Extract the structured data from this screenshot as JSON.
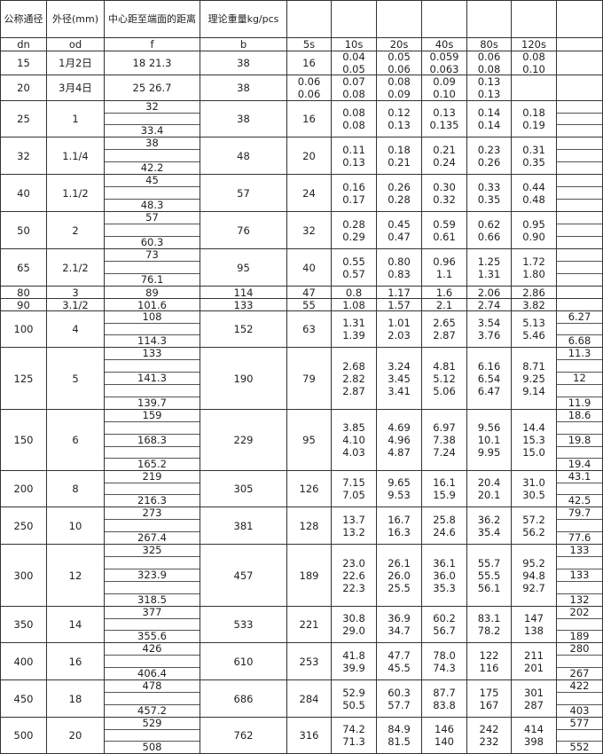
{
  "header": {
    "titles": [
      "公称通径",
      "外径(mm)",
      "中心距至端面的距离",
      "理论重量kg/pcs",
      "",
      "",
      "",
      "",
      "",
      "",
      ""
    ],
    "codes": [
      "dn",
      "od",
      "f",
      "b",
      "5s",
      "10s",
      "20s",
      "40s",
      "80s",
      "120s",
      ""
    ]
  },
  "rows": [
    {
      "dn": "15",
      "od": "1月2日",
      "f": [
        "18 21.3"
      ],
      "b": "38",
      "s5": [
        "16"
      ],
      "w": [
        [
          "0.04",
          "0.05"
        ],
        [
          "0.05",
          "0.06"
        ],
        [
          "0.059",
          "0.063"
        ],
        [
          "0.06",
          "0.08"
        ],
        [
          "0.08",
          "0.10"
        ]
      ],
      "extra": [
        ""
      ]
    },
    {
      "dn": "20",
      "od": "3月4日",
      "f": [
        "25 26.7"
      ],
      "b": "38",
      "s5": [
        "0.06",
        "0.06"
      ],
      "w": [
        [
          "0.07",
          "0.08"
        ],
        [
          "0.08",
          "0.09"
        ],
        [
          "0.09",
          "0.10"
        ],
        [
          "0.13",
          "0.13"
        ],
        []
      ],
      "extra": [
        ""
      ]
    },
    {
      "dn": "25",
      "od": "1",
      "f": [
        "32",
        "",
        "33.4"
      ],
      "b": "38",
      "s5": [
        "16"
      ],
      "w": [
        [
          "0.08",
          "0.08"
        ],
        [
          "0.12",
          "0.13"
        ],
        [
          "0.13",
          "0.135"
        ],
        [
          "0.14",
          "0.14"
        ],
        [
          "0.18",
          "0.19"
        ]
      ],
      "extra": [
        "",
        "",
        ""
      ]
    },
    {
      "dn": "32",
      "od": "1.1/4",
      "f": [
        "38",
        "",
        "42.2"
      ],
      "b": "48",
      "s5": [
        "20"
      ],
      "w": [
        [
          "0.11",
          "0.13"
        ],
        [
          "0.18",
          "0.21"
        ],
        [
          "0.21",
          "0.24"
        ],
        [
          "0.23",
          "0.26"
        ],
        [
          "0.31",
          "0.35"
        ]
      ],
      "extra": [
        "",
        "",
        ""
      ]
    },
    {
      "dn": "40",
      "od": "1.1/2",
      "f": [
        "45",
        "",
        "48.3"
      ],
      "b": "57",
      "s5": [
        "24"
      ],
      "w": [
        [
          "0.16",
          "0.17"
        ],
        [
          "0.26",
          "0.28"
        ],
        [
          "0.30",
          "0.32"
        ],
        [
          "0.33",
          "0.35"
        ],
        [
          "0.44",
          "0.48"
        ]
      ],
      "extra": [
        "",
        "",
        ""
      ]
    },
    {
      "dn": "50",
      "od": "2",
      "f": [
        "57",
        "",
        "60.3"
      ],
      "b": "76",
      "s5": [
        "32"
      ],
      "w": [
        [
          "0.28",
          "0.29"
        ],
        [
          "0.45",
          "0.47"
        ],
        [
          "0.59",
          "0.61"
        ],
        [
          "0.62",
          "0.66"
        ],
        [
          "0.95",
          "0.90"
        ]
      ],
      "extra": [
        "",
        "",
        ""
      ]
    },
    {
      "dn": "65",
      "od": "2.1/2",
      "f": [
        "73",
        "",
        "76.1"
      ],
      "b": "95",
      "s5": [
        "40"
      ],
      "w": [
        [
          "0.55",
          "0.57"
        ],
        [
          "0.80",
          "0.83"
        ],
        [
          "0.96",
          "1.1"
        ],
        [
          "1.25",
          "1.31"
        ],
        [
          "1.72",
          "1.80"
        ]
      ],
      "extra": [
        "",
        "",
        ""
      ]
    },
    {
      "dn": "80",
      "od": "3",
      "f": [
        "89"
      ],
      "b": "114",
      "s5": [
        "47"
      ],
      "w": [
        [
          "0.8"
        ],
        [
          "1.17"
        ],
        [
          "1.6"
        ],
        [
          "2.06"
        ],
        [
          "2.86"
        ]
      ],
      "extra": [
        ""
      ]
    },
    {
      "dn": "90",
      "od": "3.1/2",
      "f": [
        "101.6"
      ],
      "b": "133",
      "s5": [
        "55"
      ],
      "w": [
        [
          "1.08"
        ],
        [
          "1.57"
        ],
        [
          "2.1"
        ],
        [
          "2.74"
        ],
        [
          "3.82"
        ]
      ],
      "extra": [
        ""
      ]
    },
    {
      "dn": "100",
      "od": "4",
      "f": [
        "108",
        "",
        "114.3"
      ],
      "b": "152",
      "s5": [
        "63"
      ],
      "w": [
        [
          "1.31",
          "1.39"
        ],
        [
          "1.01",
          "2.03"
        ],
        [
          "2.65",
          "2.87"
        ],
        [
          "3.54",
          "3.76"
        ],
        [
          "5.13",
          "5.46"
        ]
      ],
      "extra": [
        "6.27",
        "",
        "6.68"
      ]
    },
    {
      "dn": "125",
      "od": "5",
      "f": [
        "133",
        "",
        "141.3",
        "",
        "139.7"
      ],
      "b": "190",
      "s5": [
        "79"
      ],
      "w": [
        [
          "2.68",
          "2.82",
          "2.87"
        ],
        [
          "3.24",
          "3.45",
          "3.41"
        ],
        [
          "4.81",
          "5.12",
          "5.06"
        ],
        [
          "6.16",
          "6.54",
          "6.47"
        ],
        [
          "8.71",
          "9.25",
          "9.14"
        ]
      ],
      "extra": [
        "11.3",
        "",
        "12",
        "",
        "11.9"
      ]
    },
    {
      "dn": "150",
      "od": "6",
      "f": [
        "159",
        "",
        "168.3",
        "",
        "165.2"
      ],
      "b": "229",
      "s5": [
        "95"
      ],
      "w": [
        [
          "3.85",
          "4.10",
          "4.03"
        ],
        [
          "4.69",
          "4.96",
          "4.87"
        ],
        [
          "6.97",
          "7.38",
          "7.24"
        ],
        [
          "9.56",
          "10.1",
          "9.95"
        ],
        [
          "14.4",
          "15.3",
          "15.0"
        ]
      ],
      "extra": [
        "18.6",
        "",
        "19.8",
        "",
        "19.4"
      ]
    },
    {
      "dn": "200",
      "od": "8",
      "f": [
        "219",
        "",
        "216.3"
      ],
      "b": "305",
      "s5": [
        "126"
      ],
      "w": [
        [
          "7.15",
          "7.05"
        ],
        [
          "9.65",
          "9.53"
        ],
        [
          "16.1",
          "15.9"
        ],
        [
          "20.4",
          "20.1"
        ],
        [
          "31.0",
          "30.5"
        ]
      ],
      "extra": [
        "43.1",
        "",
        "42.5"
      ]
    },
    {
      "dn": "250",
      "od": "10",
      "f": [
        "273",
        "",
        "267.4"
      ],
      "b": "381",
      "s5": [
        "128"
      ],
      "w": [
        [
          "13.7",
          "13.2"
        ],
        [
          "16.7",
          "16.3"
        ],
        [
          "25.8",
          "24.6"
        ],
        [
          "36.2",
          "35.4"
        ],
        [
          "57.2",
          "56.2"
        ]
      ],
      "extra": [
        "79.7",
        "",
        "77.6"
      ]
    },
    {
      "dn": "300",
      "od": "12",
      "f": [
        "325",
        "",
        "323.9",
        "",
        "318.5"
      ],
      "b": "457",
      "s5": [
        "189"
      ],
      "w": [
        [
          "23.0",
          "22.6",
          "22.3"
        ],
        [
          "26.1",
          "26.0",
          "25.5"
        ],
        [
          "36.1",
          "36.0",
          "35.3"
        ],
        [
          "55.7",
          "55.5",
          "56.1"
        ],
        [
          "95.2",
          "94.8",
          "92.7"
        ]
      ],
      "extra": [
        "133",
        "",
        "133",
        "",
        "132"
      ]
    },
    {
      "dn": "350",
      "od": "14",
      "f": [
        "377",
        "",
        "355.6"
      ],
      "b": "533",
      "s5": [
        "221"
      ],
      "w": [
        [
          "30.8",
          "29.0"
        ],
        [
          "36.9",
          "34.7"
        ],
        [
          "60.2",
          "56.7"
        ],
        [
          "83.1",
          "78.2"
        ],
        [
          "147",
          "138"
        ]
      ],
      "extra": [
        "202",
        "",
        "189"
      ]
    },
    {
      "dn": "400",
      "od": "16",
      "f": [
        "426",
        "",
        "406.4"
      ],
      "b": "610",
      "s5": [
        "253"
      ],
      "w": [
        [
          "41.8",
          "39.9"
        ],
        [
          "47.7",
          "45.5"
        ],
        [
          "78.0",
          "74.3"
        ],
        [
          "122",
          "116"
        ],
        [
          "211",
          "201"
        ]
      ],
      "extra": [
        "280",
        "",
        "267"
      ]
    },
    {
      "dn": "450",
      "od": "18",
      "f": [
        "478",
        "",
        "457.2"
      ],
      "b": "686",
      "s5": [
        "284"
      ],
      "w": [
        [
          "52.9",
          "50.5"
        ],
        [
          "60.3",
          "57.7"
        ],
        [
          "87.7",
          "83.8"
        ],
        [
          "175",
          "167"
        ],
        [
          "301",
          "287"
        ]
      ],
      "extra": [
        "422",
        "",
        "403"
      ]
    },
    {
      "dn": "500",
      "od": "20",
      "f": [
        "529",
        "",
        "508"
      ],
      "b": "762",
      "s5": [
        "316"
      ],
      "w": [
        [
          "74.2",
          "71.3"
        ],
        [
          "84.9",
          "81.5"
        ],
        [
          "146",
          "140"
        ],
        [
          "242",
          "232"
        ],
        [
          "414",
          "398"
        ]
      ],
      "extra": [
        "577",
        "",
        "552"
      ]
    }
  ]
}
